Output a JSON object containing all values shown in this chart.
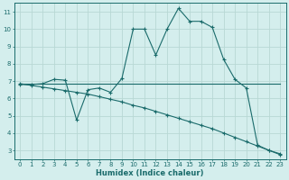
{
  "title": "",
  "xlabel": "Humidex (Indice chaleur)",
  "bg_color": "#d4eeed",
  "grid_color": "#b8d8d4",
  "line_color": "#1a6b6b",
  "xlim": [
    -0.5,
    23.5
  ],
  "ylim": [
    2.5,
    11.5
  ],
  "xticks": [
    0,
    1,
    2,
    3,
    4,
    5,
    6,
    7,
    8,
    9,
    10,
    11,
    12,
    13,
    14,
    15,
    16,
    17,
    18,
    19,
    20,
    21,
    22,
    23
  ],
  "yticks": [
    3,
    4,
    5,
    6,
    7,
    8,
    9,
    10,
    11
  ],
  "line1_x": [
    0,
    1,
    2,
    3,
    4,
    5,
    6,
    7,
    8,
    9,
    10,
    11,
    12,
    13,
    14,
    15,
    16,
    17,
    18,
    19,
    20,
    21,
    22,
    23
  ],
  "line1_y": [
    6.8,
    6.8,
    6.85,
    7.1,
    7.05,
    4.75,
    6.5,
    6.6,
    6.35,
    7.15,
    10.0,
    10.0,
    8.5,
    10.0,
    11.2,
    10.45,
    10.45,
    10.1,
    8.25,
    7.1,
    6.6,
    3.3,
    3.0,
    2.75
  ],
  "line2_x": [
    0,
    23
  ],
  "line2_y": [
    6.85,
    6.85
  ],
  "line3_x": [
    0,
    1,
    2,
    3,
    4,
    5,
    6,
    7,
    8,
    9,
    10,
    11,
    12,
    13,
    14,
    15,
    16,
    17,
    18,
    19,
    20,
    21,
    22,
    23
  ],
  "line3_y": [
    6.85,
    6.75,
    6.65,
    6.55,
    6.45,
    6.35,
    6.25,
    6.1,
    5.95,
    5.8,
    5.6,
    5.45,
    5.25,
    5.05,
    4.85,
    4.65,
    4.45,
    4.25,
    4.0,
    3.75,
    3.5,
    3.25,
    3.0,
    2.8
  ],
  "marker": "+",
  "markersize": 3.5
}
